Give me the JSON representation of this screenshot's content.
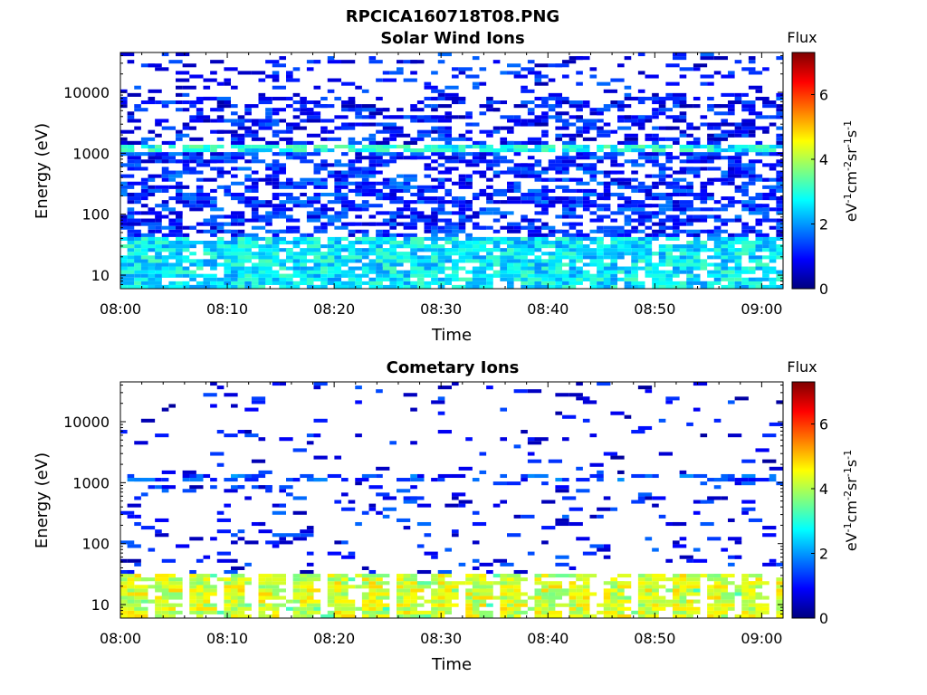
{
  "figure_title": "RPCICA160718T08.PNG",
  "colormap": [
    "#00007f",
    "#0000ff",
    "#007fff",
    "#00ffff",
    "#7fff7f",
    "#ffff00",
    "#ff7f00",
    "#ff0000",
    "#7f0000"
  ],
  "chart_data": [
    {
      "type": "heatmap",
      "title": "Solar Wind Ions",
      "xlabel": "Time",
      "ylabel": "Energy (eV)",
      "y_scale": "log",
      "ylim": [
        6,
        45000
      ],
      "xlim": [
        "08:00",
        "09:02"
      ],
      "x_ticks": [
        "08:00",
        "08:10",
        "08:20",
        "08:30",
        "08:40",
        "08:50",
        "09:00"
      ],
      "y_ticks": [
        {
          "value": 10,
          "label": "10"
        },
        {
          "value": 100,
          "label": "100"
        },
        {
          "value": 1000,
          "label": "1000"
        },
        {
          "value": 10000,
          "label": "10000"
        }
      ],
      "colorbar": {
        "label": "Flux",
        "units": "eV-1cm-2sr-1s-1",
        "range": [
          0,
          7.3
        ],
        "ticks": [
          "0",
          "2",
          "4",
          "6"
        ]
      },
      "pattern": {
        "description_rows": [
          {
            "energy_range": [
              6,
              40
            ],
            "typical_flux": 2.6
          },
          {
            "energy_range": [
              40,
              1000
            ],
            "typical_flux": 1.2
          },
          {
            "energy_range": [
              1000,
              1400
            ],
            "typical_flux": 2.8
          },
          {
            "energy_range": [
              1400,
              45000
            ],
            "typical_flux": 1.0
          }
        ]
      },
      "seed": 71
    },
    {
      "type": "heatmap",
      "title": "Cometary Ions",
      "xlabel": "Time",
      "ylabel": "Energy (eV)",
      "y_scale": "log",
      "ylim": [
        6,
        45000
      ],
      "xlim": [
        "08:00",
        "09:02"
      ],
      "x_ticks": [
        "08:00",
        "08:10",
        "08:20",
        "08:30",
        "08:40",
        "08:50",
        "09:00"
      ],
      "y_ticks": [
        {
          "value": 10,
          "label": "10"
        },
        {
          "value": 100,
          "label": "100"
        },
        {
          "value": 1000,
          "label": "1000"
        },
        {
          "value": 10000,
          "label": "10000"
        }
      ],
      "colorbar": {
        "label": "Flux",
        "units": "eV-1cm-2sr-1s-1",
        "range": [
          0,
          7.3
        ],
        "ticks": [
          "0",
          "2",
          "4",
          "6"
        ]
      },
      "pattern": {
        "description_rows": [
          {
            "energy_range": [
              6,
              30
            ],
            "typical_flux": 3.8
          },
          {
            "energy_range": [
              30,
              1000
            ],
            "typical_flux": 1.0
          },
          {
            "energy_range": [
              1000,
              1300
            ],
            "typical_flux": 1.4
          },
          {
            "energy_range": [
              1300,
              45000
            ],
            "typical_flux": 0.9
          }
        ]
      },
      "seed": 29
    }
  ]
}
